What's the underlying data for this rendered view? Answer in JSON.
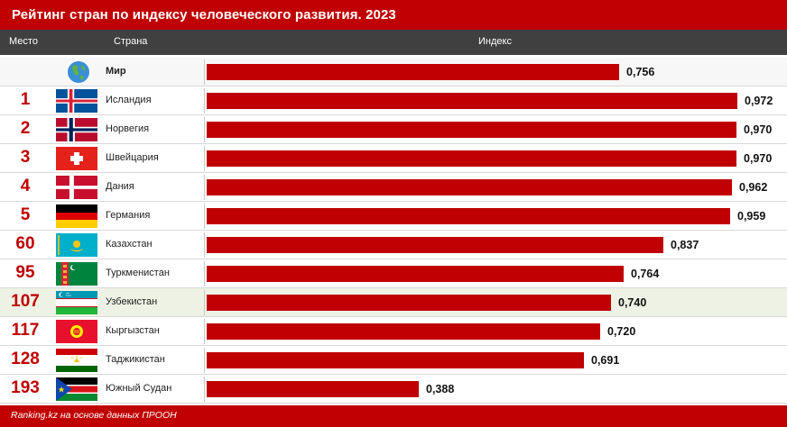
{
  "title": "Рейтинг стран по индексу человеческого развития. 2023",
  "headers": {
    "rank": "Место",
    "country": "Страна",
    "index": "Индекс"
  },
  "source": "Ranking.kz на основе данных ПРООН",
  "colors": {
    "accent": "#c00000",
    "header": "#404040",
    "highlight_row": "#eef2e4"
  },
  "chart_data": {
    "type": "bar",
    "orientation": "horizontal",
    "title": "Рейтинг стран по индексу человеческого развития. 2023",
    "xlim": [
      0,
      1
    ],
    "rows": [
      {
        "rank": "",
        "country": "Мир",
        "value": 0.756,
        "label": "0,756",
        "flag": "globe-icon"
      },
      {
        "rank": "1",
        "country": "Исландия",
        "value": 0.972,
        "label": "0,972",
        "flag": "iceland"
      },
      {
        "rank": "2",
        "country": "Норвегия",
        "value": 0.97,
        "label": "0,970",
        "flag": "norway"
      },
      {
        "rank": "3",
        "country": "Швейцария",
        "value": 0.97,
        "label": "0,970",
        "flag": "switzerland"
      },
      {
        "rank": "4",
        "country": "Дания",
        "value": 0.962,
        "label": "0,962",
        "flag": "denmark"
      },
      {
        "rank": "5",
        "country": "Германия",
        "value": 0.959,
        "label": "0,959",
        "flag": "germany"
      },
      {
        "rank": "60",
        "country": "Казахстан",
        "value": 0.837,
        "label": "0,837",
        "flag": "kazakhstan"
      },
      {
        "rank": "95",
        "country": "Туркменистан",
        "value": 0.764,
        "label": "0,764",
        "flag": "turkmenistan"
      },
      {
        "rank": "107",
        "country": "Узбекистан",
        "value": 0.74,
        "label": "0,740",
        "flag": "uzbekistan",
        "highlighted": true
      },
      {
        "rank": "117",
        "country": "Кыргызстан",
        "value": 0.72,
        "label": "0,720",
        "flag": "kyrgyzstan"
      },
      {
        "rank": "128",
        "country": "Таджикистан",
        "value": 0.691,
        "label": "0,691",
        "flag": "tajikistan"
      },
      {
        "rank": "193",
        "country": "Южный Судан",
        "value": 0.388,
        "label": "0,388",
        "flag": "south-sudan"
      }
    ]
  }
}
